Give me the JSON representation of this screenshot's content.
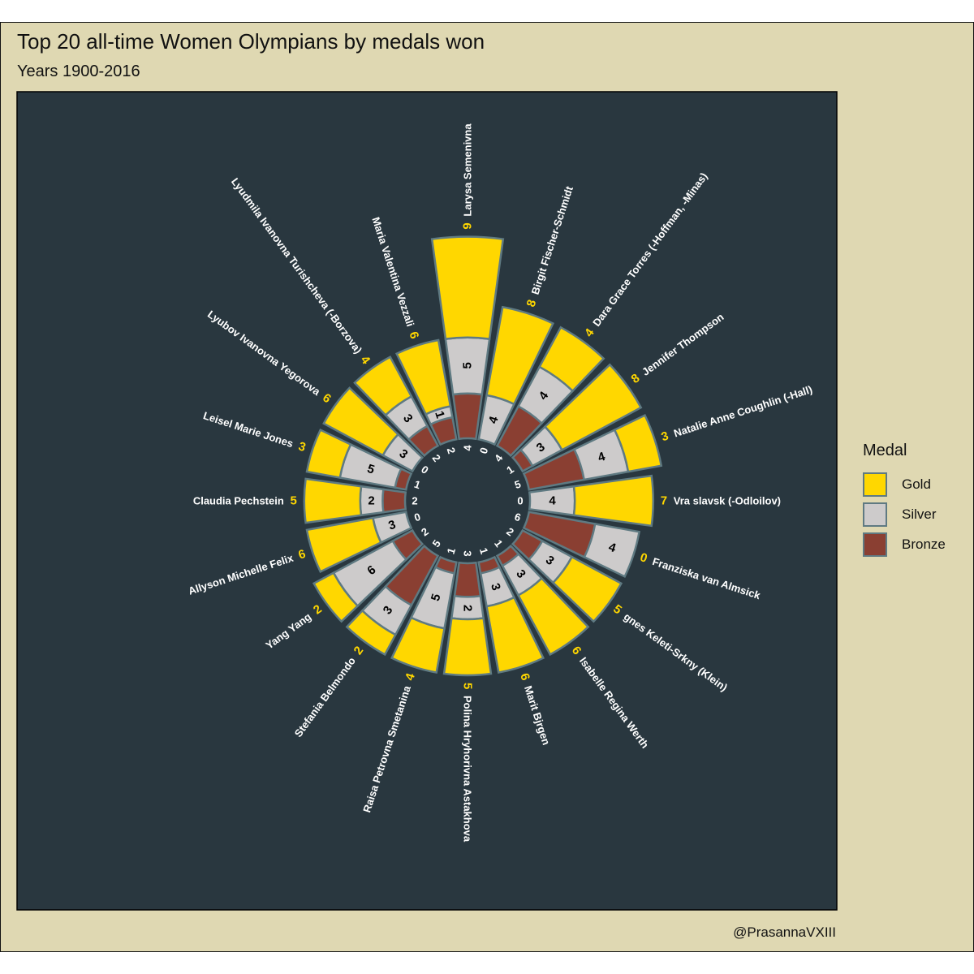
{
  "title": "Top 20 all-time Women Olympians by medals won",
  "subtitle": "Years 1900-2016",
  "caption": "@PrasannaVXIII",
  "legend": {
    "title": "Medal",
    "items": [
      {
        "label": "Gold",
        "color": "#ffd700"
      },
      {
        "label": "Silver",
        "color": "#cdcbcb"
      },
      {
        "label": "Bronze",
        "color": "#8a3f32"
      }
    ]
  },
  "colors": {
    "panel": "#29373f",
    "outline": "#5f7a82",
    "gold_label": "#ffd700",
    "name_label": "#ffffff"
  },
  "chart_data": {
    "type": "bar",
    "polar": true,
    "stacked": true,
    "title": "Top 20 all-time Women Olympians by medals won",
    "subtitle": "Years 1900-2016",
    "legend_position": "right",
    "series_order": [
      "Bronze",
      "Silver",
      "Gold"
    ],
    "athletes": [
      {
        "name": "Larysa Semenivna",
        "gold": 9,
        "silver": 5,
        "bronze": 4
      },
      {
        "name": "Birgit Fischer-Schmidt",
        "gold": 8,
        "silver": 4,
        "bronze": 0
      },
      {
        "name": "Dara Grace Torres (-Hoffman, -Minas)",
        "gold": 4,
        "silver": 4,
        "bronze": 4
      },
      {
        "name": "Jennifer Thompson",
        "gold": 8,
        "silver": 3,
        "bronze": 1
      },
      {
        "name": "Natalie Anne Coughlin (-Hall)",
        "gold": 3,
        "silver": 4,
        "bronze": 5
      },
      {
        "name": "Vra slavsk (-Odloilov)",
        "gold": 7,
        "silver": 4,
        "bronze": 0
      },
      {
        "name": "Franziska van Almsick",
        "gold": 0,
        "silver": 4,
        "bronze": 6
      },
      {
        "name": "gnes Keleti-Srkny (Klein)",
        "gold": 5,
        "silver": 3,
        "bronze": 2
      },
      {
        "name": "Isabelle Regina Werth",
        "gold": 6,
        "silver": 3,
        "bronze": 1
      },
      {
        "name": "Marit Bjrgen",
        "gold": 6,
        "silver": 3,
        "bronze": 1
      },
      {
        "name": "Polina Hryhorivna Astakhova",
        "gold": 5,
        "silver": 2,
        "bronze": 3
      },
      {
        "name": "Raisa Petrovna Smetanina",
        "gold": 4,
        "silver": 5,
        "bronze": 1
      },
      {
        "name": "Stefania Belmondo",
        "gold": 2,
        "silver": 3,
        "bronze": 5
      },
      {
        "name": "Yang Yang",
        "gold": 2,
        "silver": 6,
        "bronze": 2
      },
      {
        "name": "Allyson Michelle Felix",
        "gold": 6,
        "silver": 3,
        "bronze": 0
      },
      {
        "name": "Claudia Pechstein",
        "gold": 5,
        "silver": 2,
        "bronze": 2
      },
      {
        "name": "Leisel Marie Jones",
        "gold": 3,
        "silver": 5,
        "bronze": 1
      },
      {
        "name": "Lyubov Ivanovna Yegorova",
        "gold": 6,
        "silver": 3,
        "bronze": 0
      },
      {
        "name": "Lyudmila Ivanovna Turishcheva (-Borzova)",
        "gold": 4,
        "silver": 3,
        "bronze": 2
      },
      {
        "name": "Maria Valentina Vezzali",
        "gold": 6,
        "silver": 1,
        "bronze": 2
      }
    ]
  }
}
